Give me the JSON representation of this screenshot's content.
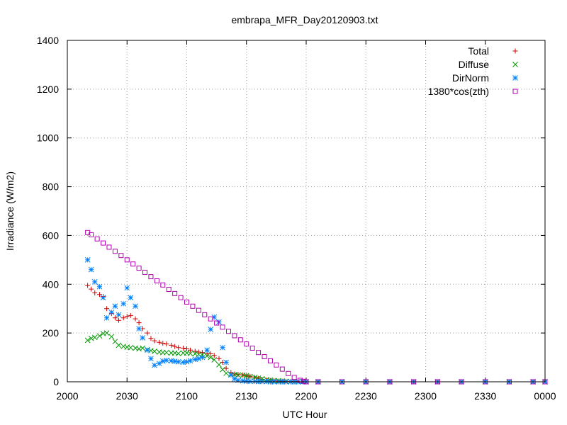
{
  "chart_data": {
    "type": "scatter",
    "title": "embrapa_MFR_Day20120903.txt",
    "xlabel": "UTC Hour",
    "ylabel": "Irradiance (W/m2)",
    "xlim": [
      20.0,
      24.0
    ],
    "ylim": [
      0,
      1400
    ],
    "x_ticks": [
      {
        "value": 20.0,
        "label": "2000"
      },
      {
        "value": 20.5,
        "label": "2030"
      },
      {
        "value": 21.0,
        "label": "2100"
      },
      {
        "value": 21.5,
        "label": "2130"
      },
      {
        "value": 22.0,
        "label": "2200"
      },
      {
        "value": 22.5,
        "label": "2230"
      },
      {
        "value": 23.0,
        "label": "2300"
      },
      {
        "value": 23.5,
        "label": "2330"
      },
      {
        "value": 24.0,
        "label": "0000"
      }
    ],
    "y_ticks": [
      {
        "value": 0,
        "label": "0"
      },
      {
        "value": 200,
        "label": "200"
      },
      {
        "value": 400,
        "label": "400"
      },
      {
        "value": 600,
        "label": "600"
      },
      {
        "value": 800,
        "label": "800"
      },
      {
        "value": 1000,
        "label": "1000"
      },
      {
        "value": 1200,
        "label": "1200"
      },
      {
        "value": 1400,
        "label": "1400"
      }
    ],
    "grid": true,
    "legend_position": "top-right",
    "series": [
      {
        "name": "Total",
        "marker": "plus",
        "color": "#cc0000",
        "x": [
          20.17,
          20.2,
          20.23,
          20.27,
          20.3,
          20.33,
          20.37,
          20.4,
          20.43,
          20.47,
          20.5,
          20.53,
          20.57,
          20.6,
          20.63,
          20.67,
          20.7,
          20.73,
          20.77,
          20.8,
          20.83,
          20.87,
          20.9,
          20.93,
          20.97,
          21.0,
          21.03,
          21.07,
          21.1,
          21.13,
          21.17,
          21.2,
          21.23,
          21.27,
          21.3,
          21.33,
          21.37,
          21.4,
          21.43,
          21.47,
          21.5,
          21.53,
          21.57,
          21.6,
          21.63,
          21.67,
          21.7,
          21.73,
          21.77,
          21.8,
          21.83,
          21.87,
          21.9,
          21.93,
          21.97,
          22.0,
          22.1,
          22.3,
          22.5,
          22.7,
          22.9,
          23.1,
          23.3,
          23.5,
          23.7,
          23.9,
          24.0
        ],
        "y": [
          395,
          380,
          365,
          358,
          350,
          300,
          280,
          262,
          252,
          262,
          268,
          272,
          258,
          242,
          218,
          200,
          178,
          168,
          162,
          158,
          155,
          150,
          145,
          140,
          138,
          135,
          130,
          125,
          122,
          120,
          116,
          115,
          108,
          95,
          80,
          55,
          38,
          32,
          30,
          28,
          25,
          22,
          18,
          14,
          10,
          7,
          5,
          4,
          3,
          2,
          2,
          1,
          1,
          1,
          0,
          0,
          0,
          0,
          0,
          0,
          0,
          0,
          0,
          0,
          0,
          0,
          0
        ]
      },
      {
        "name": "Diffuse",
        "marker": "x",
        "color": "#009900",
        "x": [
          20.17,
          20.2,
          20.23,
          20.27,
          20.3,
          20.33,
          20.37,
          20.4,
          20.43,
          20.47,
          20.5,
          20.53,
          20.57,
          20.6,
          20.63,
          20.67,
          20.7,
          20.73,
          20.77,
          20.8,
          20.83,
          20.87,
          20.9,
          20.93,
          20.97,
          21.0,
          21.03,
          21.07,
          21.1,
          21.13,
          21.17,
          21.2,
          21.23,
          21.27,
          21.3,
          21.33,
          21.37,
          21.4,
          21.43,
          21.47,
          21.5,
          21.53,
          21.57,
          21.6,
          21.63,
          21.67,
          21.7,
          21.73,
          21.77,
          21.8,
          21.83,
          21.87,
          21.9,
          21.93,
          21.97,
          22.0,
          22.1,
          22.3,
          22.5,
          22.7,
          22.9,
          23.1,
          23.3,
          23.5,
          23.7,
          23.9,
          24.0
        ],
        "y": [
          170,
          178,
          182,
          188,
          198,
          200,
          185,
          165,
          150,
          145,
          142,
          140,
          138,
          135,
          138,
          132,
          128,
          125,
          122,
          120,
          120,
          118,
          118,
          116,
          118,
          118,
          116,
          115,
          112,
          110,
          106,
          100,
          90,
          70,
          50,
          35,
          30,
          29,
          28,
          27,
          25,
          22,
          18,
          15,
          12,
          9,
          7,
          5,
          4,
          3,
          2,
          1,
          1,
          1,
          0,
          0,
          0,
          0,
          0,
          0,
          0,
          0,
          0,
          0,
          0,
          0,
          0
        ]
      },
      {
        "name": "DirNorm",
        "marker": "star",
        "color": "#0080ff",
        "x": [
          20.17,
          20.2,
          20.23,
          20.27,
          20.3,
          20.33,
          20.37,
          20.4,
          20.43,
          20.47,
          20.5,
          20.53,
          20.57,
          20.6,
          20.63,
          20.67,
          20.7,
          20.73,
          20.77,
          20.8,
          20.83,
          20.87,
          20.9,
          20.93,
          20.97,
          21.0,
          21.03,
          21.07,
          21.1,
          21.13,
          21.17,
          21.2,
          21.23,
          21.27,
          21.3,
          21.33,
          21.37,
          21.4,
          21.43,
          21.47,
          21.5,
          21.53,
          21.57,
          21.6,
          21.63,
          21.67,
          21.7,
          21.73,
          21.77,
          21.8,
          21.83,
          21.87,
          21.9,
          21.93,
          21.97,
          22.0,
          22.1,
          22.3,
          22.5,
          22.7,
          22.9,
          23.1,
          23.3,
          23.5,
          23.7,
          23.9,
          24.0
        ],
        "y": [
          500,
          460,
          410,
          390,
          345,
          262,
          285,
          310,
          275,
          320,
          385,
          345,
          310,
          218,
          180,
          130,
          95,
          68,
          75,
          85,
          88,
          86,
          84,
          82,
          80,
          82,
          86,
          92,
          95,
          100,
          130,
          215,
          265,
          245,
          140,
          80,
          28,
          12,
          6,
          4,
          3,
          2,
          2,
          1,
          1,
          1,
          0,
          0,
          0,
          0,
          0,
          0,
          0,
          0,
          0,
          0,
          0,
          0,
          0,
          0,
          0,
          0,
          0,
          0,
          0,
          0,
          0
        ]
      },
      {
        "name": "1380*cos(zth)",
        "marker": "square",
        "color": "#b000b0",
        "x": [
          20.17,
          20.2,
          20.25,
          20.3,
          20.35,
          20.4,
          20.45,
          20.5,
          20.55,
          20.6,
          20.65,
          20.7,
          20.75,
          20.8,
          20.85,
          20.9,
          20.95,
          21.0,
          21.05,
          21.1,
          21.15,
          21.2,
          21.25,
          21.3,
          21.35,
          21.4,
          21.45,
          21.5,
          21.55,
          21.6,
          21.65,
          21.7,
          21.75,
          21.8,
          21.85,
          21.9,
          21.95,
          21.98,
          22.0,
          22.1,
          22.3,
          22.5,
          22.7,
          22.9,
          23.1,
          23.3,
          23.5,
          23.7,
          23.9,
          24.0
        ],
        "y": [
          612,
          603,
          586,
          569,
          552,
          535,
          518,
          500,
          483,
          466,
          449,
          431,
          414,
          397,
          379,
          362,
          345,
          327,
          310,
          293,
          275,
          258,
          241,
          224,
          207,
          189,
          172,
          155,
          138,
          120,
          103,
          86,
          69,
          52,
          34,
          18,
          6,
          2,
          0,
          0,
          0,
          0,
          0,
          0,
          0,
          0,
          0,
          0,
          0,
          0
        ]
      }
    ]
  }
}
